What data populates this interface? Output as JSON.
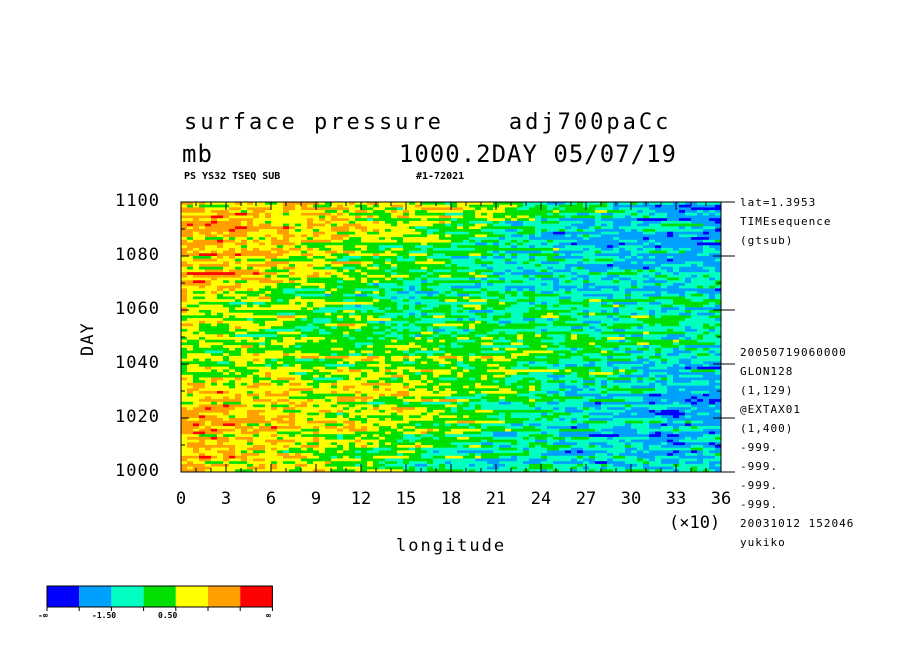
{
  "header": {
    "title_left": "surface pressure",
    "title_right": "adj700paCc",
    "units": "mb",
    "subtitle_right": "1000.2DAY 05/07/19",
    "info_left": "PS YS32 TSEQ SUB",
    "info_right": "#1-72021"
  },
  "side_top": [
    "lat=1.3953",
    "TIMEsequence",
    "(gtsub)"
  ],
  "side_bottom": [
    "20050719060000",
    "GLON128",
    "(1,129)",
    "@EXTAX01",
    "(1,400)",
    "-999.",
    "-999.",
    "-999.",
    "-999.",
    "20031012 152046",
    "yukiko"
  ],
  "colorbar": {
    "colors": [
      "#0000ff",
      "#00a0ff",
      "#00ffc0",
      "#00e000",
      "#ffff00",
      "#ffa000",
      "#ff0000"
    ],
    "labels": [
      "-∞",
      "-1.50",
      "0.50",
      "∞"
    ]
  },
  "chart_data": {
    "type": "heatmap",
    "title": "surface pressure",
    "xlabel": "longitude",
    "ylabel": "DAY",
    "x_scale_note": "(×10)",
    "xlim": [
      0,
      36
    ],
    "ylim": [
      1000,
      1100
    ],
    "x_ticks": [
      "0",
      "3",
      "6",
      "9",
      "12",
      "15",
      "18",
      "21",
      "24",
      "27",
      "30",
      "33",
      "36"
    ],
    "y_ticks": [
      "1000",
      "1020",
      "1040",
      "1060",
      "1080",
      "1100"
    ],
    "legend_placement": "bottom-left",
    "pattern_note": "noisy zonally-elongated streaks; positive (yellow/orange/red) on western side, negative (cyan/blue) on eastern side"
  }
}
